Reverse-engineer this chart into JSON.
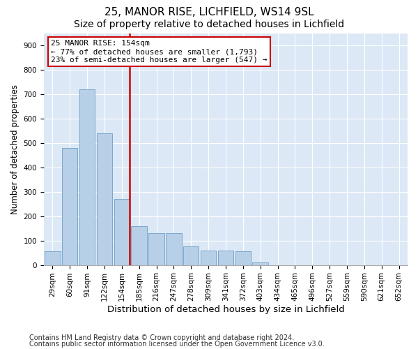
{
  "title1": "25, MANOR RISE, LICHFIELD, WS14 9SL",
  "title2": "Size of property relative to detached houses in Lichfield",
  "xlabel": "Distribution of detached houses by size in Lichfield",
  "ylabel": "Number of detached properties",
  "categories": [
    "29sqm",
    "60sqm",
    "91sqm",
    "122sqm",
    "154sqm",
    "185sqm",
    "216sqm",
    "247sqm",
    "278sqm",
    "309sqm",
    "341sqm",
    "372sqm",
    "403sqm",
    "434sqm",
    "465sqm",
    "496sqm",
    "527sqm",
    "559sqm",
    "590sqm",
    "621sqm",
    "652sqm"
  ],
  "values": [
    55,
    480,
    720,
    540,
    270,
    160,
    130,
    130,
    75,
    60,
    58,
    55,
    10,
    0,
    0,
    0,
    0,
    0,
    0,
    0,
    0
  ],
  "bar_color": "#b8cfe8",
  "bar_edge_color": "#6b9fc8",
  "vline_color": "#cc0000",
  "vline_index": 4,
  "annotation_text": "25 MANOR RISE: 154sqm\n← 77% of detached houses are smaller (1,793)\n23% of semi-detached houses are larger (547) →",
  "annotation_box_color": "white",
  "annotation_box_edge": "#cc0000",
  "ylim": [
    0,
    950
  ],
  "yticks": [
    0,
    100,
    200,
    300,
    400,
    500,
    600,
    700,
    800,
    900
  ],
  "background_color": "#dce8f5",
  "footer_line1": "Contains HM Land Registry data © Crown copyright and database right 2024.",
  "footer_line2": "Contains public sector information licensed under the Open Government Licence v3.0.",
  "title1_fontsize": 11,
  "title2_fontsize": 10,
  "xlabel_fontsize": 9.5,
  "ylabel_fontsize": 8.5,
  "tick_fontsize": 7.5,
  "footer_fontsize": 7
}
